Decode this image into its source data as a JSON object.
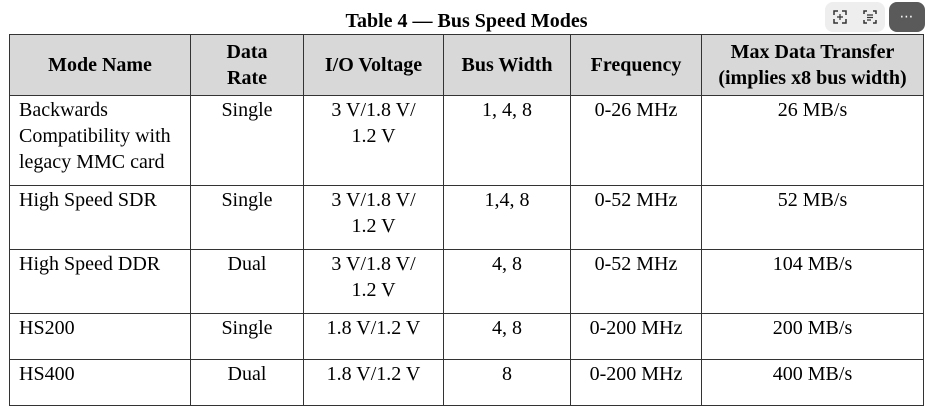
{
  "title": "Table 4 — Bus Speed Modes",
  "toolbar": {
    "icons": [
      "expand-icon",
      "table-extract-icon",
      "more-icon"
    ],
    "more_label": "⋯"
  },
  "table": {
    "headers": [
      "Mode Name",
      "Data Rate",
      "I/O Voltage",
      "Bus Width",
      "Frequency",
      "Max Data Transfer (implies x8 bus width)"
    ],
    "header_lines": [
      [
        "Mode Name"
      ],
      [
        "Data",
        "Rate"
      ],
      [
        "I/O Voltage"
      ],
      [
        "Bus Width"
      ],
      [
        "Frequency"
      ],
      [
        "Max Data Transfer",
        "(implies x8 bus width)"
      ]
    ],
    "rows": [
      {
        "mode_lines": [
          "Backwards",
          "Compatibility with",
          "legacy MMC card"
        ],
        "data_rate": "Single",
        "voltage_lines": [
          "3 V/1.8 V/",
          "1.2 V"
        ],
        "bus_width": "1, 4, 8",
        "frequency": "0-26 MHz",
        "max_transfer": "26 MB/s"
      },
      {
        "mode_lines": [
          "High Speed SDR"
        ],
        "data_rate": "Single",
        "voltage_lines": [
          "3 V/1.8 V/",
          "1.2 V"
        ],
        "bus_width": "1,4, 8",
        "frequency": "0-52 MHz",
        "max_transfer": "52 MB/s"
      },
      {
        "mode_lines": [
          "High Speed DDR"
        ],
        "data_rate": "Dual",
        "voltage_lines": [
          "3 V/1.8 V/",
          "1.2 V"
        ],
        "bus_width": "4, 8",
        "frequency": "0-52 MHz",
        "max_transfer": "104 MB/s"
      },
      {
        "mode_lines": [
          "HS200"
        ],
        "data_rate": "Single",
        "voltage_lines": [
          "1.8 V/1.2 V"
        ],
        "bus_width": "4, 8",
        "frequency": "0-200 MHz",
        "max_transfer": "200 MB/s"
      },
      {
        "mode_lines": [
          "HS400"
        ],
        "data_rate": "Dual",
        "voltage_lines": [
          "1.8 V/1.2 V"
        ],
        "bus_width": "8",
        "frequency": "0-200 MHz",
        "max_transfer": "400 MB/s"
      }
    ]
  }
}
